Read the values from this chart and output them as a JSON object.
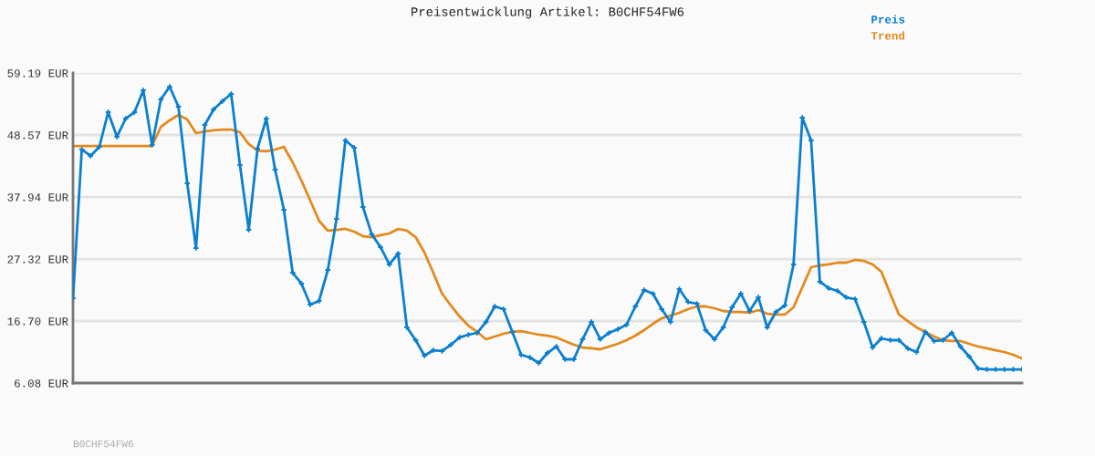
{
  "chart_data": {
    "type": "line",
    "title": "Preisentwicklung Artikel: B0CHF54FW6",
    "categories": [
      null,
      null,
      null,
      null,
      null,
      null,
      null,
      null,
      null,
      null,
      null,
      null,
      null,
      null,
      null,
      null,
      null,
      null,
      null,
      null,
      null,
      null,
      null,
      null,
      null,
      null,
      null,
      null,
      null,
      null,
      null,
      null,
      null,
      null,
      null,
      null,
      null,
      null,
      null,
      null,
      null,
      null,
      null,
      null,
      null,
      null,
      null,
      null,
      null,
      null,
      null,
      null,
      null,
      null,
      null,
      null,
      null,
      null,
      null,
      null,
      null,
      null,
      null,
      null,
      null,
      null,
      null,
      null,
      null,
      null,
      null,
      null,
      null,
      null,
      null,
      null,
      null,
      null,
      null,
      null,
      null,
      null,
      null,
      null,
      null,
      null,
      null,
      null,
      null,
      null,
      null,
      null,
      null,
      null,
      null,
      null,
      null,
      null,
      null,
      null,
      null,
      null,
      null,
      null,
      null,
      null,
      null,
      null,
      null
    ],
    "series": [
      {
        "name": "Preis",
        "color": "#0a7fd0",
        "marker": "cross",
        "values": [
          20.61,
          46.07,
          44.98,
          46.54,
          52.47,
          48.26,
          51.38,
          52.47,
          56.22,
          46.85,
          54.66,
          56.85,
          53.41,
          40.29,
          29.2,
          50.29,
          52.94,
          54.35,
          55.6,
          43.41,
          32.32,
          46.23,
          51.38,
          42.63,
          35.76,
          24.98,
          23.11,
          19.51,
          20.14,
          25.45,
          34.2,
          47.63,
          46.38,
          36.23,
          31.54,
          29.36,
          26.39,
          28.26,
          15.61,
          13.42,
          10.77,
          11.7,
          11.55,
          12.64,
          13.89,
          14.36,
          14.67,
          16.55,
          19.2,
          18.73,
          14.83,
          10.92,
          10.45,
          9.52,
          11.23,
          12.33,
          10.14,
          10.14,
          13.58,
          16.55,
          13.58,
          14.67,
          15.3,
          16.08,
          19.2,
          22.01,
          21.39,
          18.73,
          16.55,
          22.17,
          19.98,
          19.67,
          15.14,
          13.58,
          15.61,
          19.05,
          21.39,
          18.42,
          20.76,
          15.61,
          18.26,
          19.36,
          26.39,
          51.54,
          47.63,
          23.42,
          22.33,
          21.86,
          20.76,
          20.45,
          16.55,
          12.17,
          13.73,
          13.42,
          13.42,
          12.02,
          11.39,
          14.83,
          13.27,
          13.42,
          14.67,
          12.33,
          10.61,
          8.58,
          8.42,
          8.42,
          8.42,
          8.42,
          8.42
        ]
      },
      {
        "name": "Trend",
        "color": "#e5891d",
        "marker": "none",
        "values": [
          46.69,
          46.69,
          46.69,
          46.69,
          46.69,
          46.69,
          46.69,
          46.69,
          46.69,
          46.69,
          49.97,
          51.07,
          52.01,
          51.23,
          48.88,
          49.19,
          49.35,
          49.5,
          49.5,
          49.04,
          47.01,
          45.91,
          45.76,
          46.07,
          46.54,
          43.88,
          40.76,
          37.32,
          33.89,
          32.17,
          32.32,
          32.48,
          32.01,
          31.23,
          31.07,
          31.39,
          31.7,
          32.48,
          32.17,
          31.07,
          28.42,
          24.98,
          21.39,
          19.36,
          17.48,
          15.92,
          14.83,
          13.58,
          14.05,
          14.52,
          14.83,
          14.98,
          14.67,
          14.36,
          14.2,
          13.89,
          13.27,
          12.64,
          12.17,
          12.02,
          11.86,
          12.33,
          12.8,
          13.42,
          14.2,
          15.14,
          16.23,
          17.17,
          17.64,
          18.11,
          18.73,
          19.2,
          19.2,
          18.89,
          18.42,
          18.26,
          18.26,
          18.11,
          18.58,
          17.95,
          17.8,
          17.8,
          19.05,
          22.48,
          25.92,
          26.23,
          26.39,
          26.7,
          26.7,
          27.17,
          27.01,
          26.39,
          25.14,
          21.39,
          17.8,
          16.7,
          15.61,
          14.83,
          14.05,
          13.42,
          13.27,
          13.27,
          12.8,
          12.33,
          12.02,
          11.7,
          11.39,
          10.92,
          10.3
        ]
      }
    ],
    "ylim": [
      6.08,
      59.19
    ],
    "yticks": [
      {
        "value": 6.08,
        "label": "6.08 EUR"
      },
      {
        "value": 16.7,
        "label": "16.70 EUR"
      },
      {
        "value": 27.32,
        "label": "27.32 EUR"
      },
      {
        "value": 37.94,
        "label": "37.94 EUR"
      },
      {
        "value": 48.57,
        "label": "48.57 EUR"
      },
      {
        "value": 59.19,
        "label": "59.19 EUR"
      }
    ],
    "grid": "y",
    "legend": "top right",
    "line_style": "solid",
    "annotations": [
      "B0CHF54FW6"
    ]
  }
}
